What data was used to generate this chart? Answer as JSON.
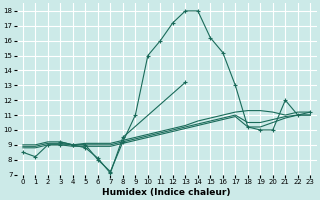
{
  "bg_color": "#cceae8",
  "grid_color": "#ffffff",
  "line_color": "#1a6b5a",
  "xlabel": "Humidex (Indice chaleur)",
  "xlim": [
    -0.5,
    23.5
  ],
  "ylim": [
    7,
    18.5
  ],
  "xticks": [
    0,
    1,
    2,
    3,
    4,
    5,
    6,
    7,
    8,
    9,
    10,
    11,
    12,
    13,
    14,
    15,
    16,
    17,
    18,
    19,
    20,
    21,
    22,
    23
  ],
  "yticks": [
    7,
    8,
    9,
    10,
    11,
    12,
    13,
    14,
    15,
    16,
    17,
    18
  ],
  "series": [
    {
      "x": [
        0,
        1,
        2,
        3,
        4,
        5,
        6,
        7,
        8,
        9,
        10,
        11,
        12,
        13,
        14,
        15,
        16,
        17,
        18,
        19,
        20,
        21,
        22,
        23
      ],
      "y": [
        8.5,
        8.2,
        9.0,
        9.0,
        9.0,
        9.0,
        8.0,
        7.2,
        9.2,
        11.0,
        15.0,
        16.0,
        17.2,
        18.0,
        18.0,
        16.2,
        15.2,
        13.0,
        10.2,
        10.0,
        10.0,
        12.0,
        11.0,
        11.2
      ],
      "marker": "+"
    },
    {
      "x": [
        0,
        1,
        2,
        3,
        4,
        5,
        6,
        7,
        8,
        9,
        10,
        11,
        12,
        13,
        14,
        15,
        16,
        17,
        18,
        19,
        20,
        21,
        22,
        23
      ],
      "y": [
        9.0,
        9.0,
        9.2,
        9.2,
        9.0,
        9.1,
        9.1,
        9.1,
        9.3,
        9.5,
        9.7,
        9.9,
        10.1,
        10.3,
        10.6,
        10.8,
        11.0,
        11.2,
        11.3,
        11.3,
        11.2,
        11.0,
        11.2,
        11.2
      ],
      "marker": null
    },
    {
      "x": [
        0,
        1,
        2,
        3,
        4,
        5,
        6,
        7,
        8,
        9,
        10,
        11,
        12,
        13,
        14,
        15,
        16,
        17,
        18,
        19,
        20,
        21,
        22,
        23
      ],
      "y": [
        8.9,
        8.9,
        9.1,
        9.1,
        9.0,
        9.0,
        9.0,
        9.0,
        9.2,
        9.4,
        9.6,
        9.8,
        10.0,
        10.2,
        10.4,
        10.6,
        10.8,
        11.0,
        10.5,
        10.5,
        10.7,
        10.9,
        11.0,
        11.0
      ],
      "marker": null
    },
    {
      "x": [
        0,
        1,
        2,
        3,
        4,
        5,
        6,
        7,
        8,
        9,
        10,
        11,
        12,
        13,
        14,
        15,
        16,
        17,
        18,
        19,
        20,
        21,
        22,
        23
      ],
      "y": [
        8.8,
        8.8,
        9.0,
        9.0,
        8.9,
        8.9,
        8.9,
        8.9,
        9.1,
        9.3,
        9.5,
        9.7,
        9.9,
        10.1,
        10.3,
        10.5,
        10.7,
        10.9,
        10.2,
        10.2,
        10.5,
        10.8,
        11.0,
        11.0
      ],
      "marker": null
    },
    {
      "x": [
        3,
        4,
        5,
        6,
        7,
        8,
        13
      ],
      "y": [
        9.2,
        9.0,
        8.8,
        8.1,
        7.1,
        9.5,
        13.2
      ],
      "marker": "+"
    }
  ]
}
